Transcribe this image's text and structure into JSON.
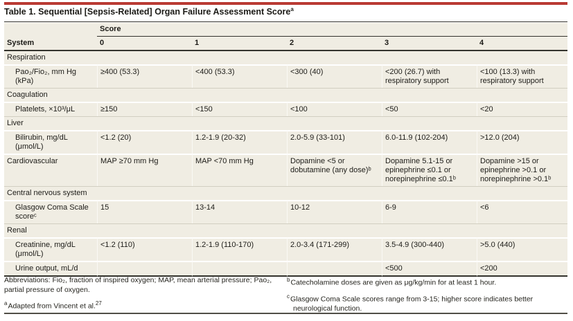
{
  "title": {
    "text": "Table 1. Sequential [Sepsis-Related] Organ Failure Assessment Score",
    "sup": "a"
  },
  "colors": {
    "accent_red": "#b93a33",
    "row_beige": "#f0ede3",
    "rule_dark": "#34332d",
    "rule_gray": "#d1cec1"
  },
  "table": {
    "header": {
      "score_label": "Score",
      "system_label": "System",
      "score_columns": [
        "0",
        "1",
        "2",
        "3",
        "4"
      ]
    },
    "rows": [
      {
        "type": "section",
        "label": "Respiration"
      },
      {
        "type": "data",
        "label": "Pao₂/Fio₂, mm Hg (kPa)",
        "cells": [
          "≥400 (53.3)",
          "<400 (53.3)",
          "<300 (40)",
          "<200 (26.7) with respiratory support",
          "<100 (13.3) with respiratory support"
        ]
      },
      {
        "type": "section",
        "label": "Coagulation"
      },
      {
        "type": "data",
        "label": "Platelets, ×10³/μL",
        "cells": [
          "≥150",
          "<150",
          "<100",
          "<50",
          "<20"
        ]
      },
      {
        "type": "section",
        "label": "Liver"
      },
      {
        "type": "data",
        "label": "Bilirubin, mg/dL (μmol/L)",
        "cells": [
          "<1.2 (20)",
          "1.2-1.9 (20-32)",
          "2.0-5.9 (33-101)",
          "6.0-11.9 (102-204)",
          ">12.0 (204)"
        ]
      },
      {
        "type": "data",
        "flush": true,
        "label": "Cardiovascular",
        "cells": [
          "MAP ≥70 mm Hg",
          "MAP <70 mm Hg",
          "Dopamine <5 or dobutamine (any dose)ᵇ",
          "Dopamine 5.1-15 or epinephrine ≤0.1 or norepinephrine ≤0.1ᵇ",
          "Dopamine >15 or epinephrine >0.1 or norepinephrine >0.1ᵇ"
        ]
      },
      {
        "type": "section",
        "label": "Central nervous system"
      },
      {
        "type": "data",
        "label": "Glasgow Coma Scale scoreᶜ",
        "cells": [
          "15",
          "13-14",
          "10-12",
          "6-9",
          "<6"
        ]
      },
      {
        "type": "section",
        "label": "Renal"
      },
      {
        "type": "data",
        "label": "Creatinine, mg/dL (μmol/L)",
        "cells": [
          "<1.2 (110)",
          "1.2-1.9 (110-170)",
          "2.0-3.4 (171-299)",
          "3.5-4.9 (300-440)",
          ">5.0 (440)"
        ]
      },
      {
        "type": "data",
        "label": "Urine output, mL/d",
        "cells": [
          "",
          "",
          "",
          "<500",
          "<200"
        ]
      }
    ]
  },
  "footnotes": {
    "abbreviations": "Abbreviations: Fio₂, fraction of inspired oxygen; MAP, mean arterial pressure; Pao₂, partial pressure of oxygen.",
    "a_marker": "a",
    "a_text": "Adapted from Vincent et al.",
    "a_ref": "27",
    "b_marker": "b",
    "b_text": "Catecholamine doses are given as μg/kg/min for at least 1 hour.",
    "c_marker": "c",
    "c_text": "Glasgow Coma Scale scores range from 3-15; higher score indicates better neurological function."
  }
}
